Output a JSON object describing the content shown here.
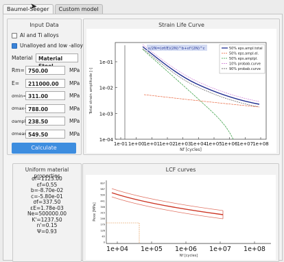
{
  "tabs": [
    "Baumel-Seeger",
    "Custom model"
  ],
  "input": {
    "title": "Input Data",
    "alloy1": "Al and Ti alloys",
    "alloy2": "Unalloyed and low -alloy",
    "material_label": "Material",
    "material_value": "Material Steel",
    "fields": [
      {
        "label": "Rm=",
        "value": "750.00",
        "unit": "MPa"
      },
      {
        "label": "E=",
        "value": "211000.00",
        "unit": "MPa"
      },
      {
        "label": "σmin=",
        "value": "311.00",
        "unit": "MPa"
      },
      {
        "label": "σmax=",
        "value": "788.00",
        "unit": "MPa"
      },
      {
        "label": "σampl=",
        "value": "238.50",
        "unit": "MPa"
      },
      {
        "label": "σmean=",
        "value": "549.50",
        "unit": "MPa"
      }
    ],
    "calculate": "Calculate"
  },
  "strain_chart": {
    "title": "Strain Life Curve",
    "xlabel": "Nf [cycles]",
    "ylabel": "Total strain amplitude [-]",
    "xticks": [
      "1e-01",
      "1e+00",
      "1e+01",
      "1e+02",
      "1e+03",
      "1e+04",
      "1e+05",
      "1e+06",
      "1e+07",
      "1e+08"
    ],
    "yticks": [
      "1e-01",
      "1e-02",
      "1e-03",
      "1e-04"
    ],
    "formula": "ε/2N=(σf/E)(2N)^b+εf'(2N)^c",
    "legend": [
      "50% eps.ampl.total",
      "50% eps.ampl.el.",
      "50% eps.amplpl.",
      "10% probab.curve",
      "90% probab.curve"
    ],
    "colors": [
      "#1d2b8f",
      "#e8623a",
      "#2f9a3b",
      "#c76bd0",
      "#444444"
    ]
  },
  "properties": {
    "title": "Uniform material properties",
    "items": [
      "σf=1125.00",
      "εf=0.55",
      "b=-8.70e-02",
      "c=-5.80e-01",
      "σf=337.50",
      "εE=1.78e-03",
      "Ne=500000.00",
      "K'=1237.50",
      "n'=0.15",
      "Ψ=0.93"
    ]
  },
  "lcf_chart": {
    "title": "LCF curves",
    "xlabel": "Nf [cycles]",
    "ylabel": "Pexe [MPa]",
    "xticks": [
      "1e+04",
      "1e+05",
      "1e+06",
      "1e+07",
      "1e+08"
    ],
    "yticks": [
      "607",
      "587",
      "500",
      "441",
      "346",
      "315",
      "246",
      "179",
      "126",
      "63",
      "0"
    ]
  }
}
